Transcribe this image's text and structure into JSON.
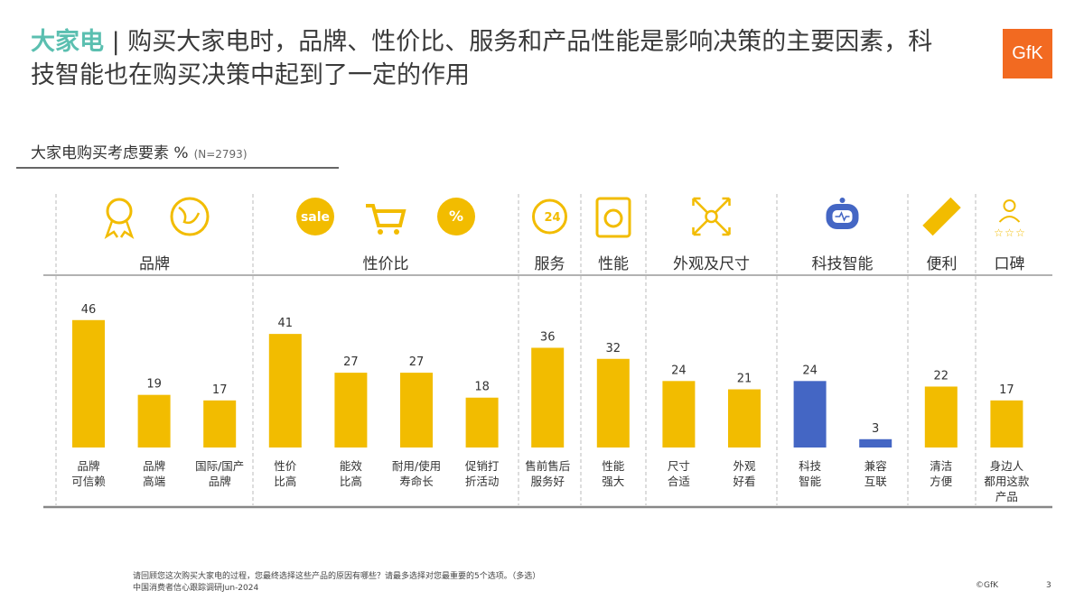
{
  "header": {
    "highlight": "大家电",
    "separator": " | ",
    "title": "购买大家电时，品牌、性价比、服务和产品性能是影响决策的主要因素，科技智能也在购买决策中起到了一定的作用",
    "logo": "GfK"
  },
  "chart_data": {
    "type": "bar",
    "title": "大家电购买考虑要素 %",
    "sample": "(N=2793)",
    "groups": [
      {
        "label": "品牌",
        "icons": [
          "award-ribbon-icon",
          "globe-icon"
        ],
        "items": [
          0,
          1,
          2
        ]
      },
      {
        "label": "性价比",
        "icons": [
          "sale-badge-icon",
          "shopping-cart-icon",
          "discount-badge-icon"
        ],
        "items": [
          3,
          4,
          5,
          6
        ]
      },
      {
        "label": "服务",
        "icons": [
          "phone-24h-icon"
        ],
        "items": [
          7
        ]
      },
      {
        "label": "性能",
        "icons": [
          "appliance-icon"
        ],
        "items": [
          8
        ]
      },
      {
        "label": "外观及尺寸",
        "icons": [
          "expand-arrows-icon"
        ],
        "items": [
          9,
          10
        ]
      },
      {
        "label": "科技智能",
        "icons": [
          "robot-icon"
        ],
        "items": [
          11,
          12
        ]
      },
      {
        "label": "便利",
        "icons": [
          "cleaning-brush-icon"
        ],
        "items": [
          13
        ]
      },
      {
        "label": "口碑",
        "icons": [
          "user-rating-icon"
        ],
        "items": [
          14
        ]
      }
    ],
    "categories": [
      "品牌\n可信赖",
      "品牌\n高端",
      "国际/国产\n品牌",
      "性价\n比高",
      "能效\n比高",
      "耐用/使用\n寿命长",
      "促销打\n折活动",
      "售前售后\n服务好",
      "性能\n强大",
      "尺寸\n合适",
      "外观\n好看",
      "科技\n智能",
      "兼容\n互联",
      "清洁\n方便",
      "身边人\n都用这款\n产品"
    ],
    "values": [
      46,
      19,
      17,
      41,
      27,
      27,
      18,
      36,
      32,
      24,
      21,
      24,
      3,
      22,
      17
    ],
    "highlight_indices": [
      11,
      12
    ],
    "colors": {
      "default": "#f2bc00",
      "highlight": "#4466c4"
    }
  },
  "footer": {
    "note": "请回顾您这次购买大家电的过程，您最终选择这些产品的原因有哪些？请最多选择对您最重要的5个选项。（多选）",
    "source": "中国消费者信心跟踪调研Jun-2024",
    "copyright": "©GfK",
    "page": "3"
  }
}
